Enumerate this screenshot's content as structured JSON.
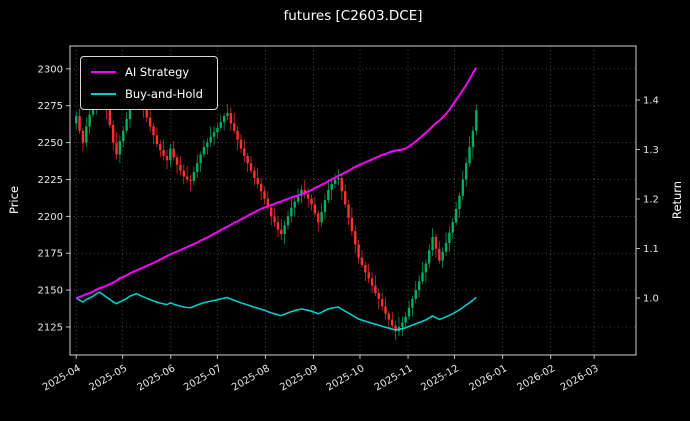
{
  "chart_data": {
    "type": "candlestick",
    "title": "futures [C2603.DCE]",
    "ylabel_left": "Price",
    "ylabel_right": "Return",
    "grid": true,
    "legend_position": "upper left",
    "colors": {
      "up": "#00b060",
      "down": "#fe3032",
      "ai": "#ff00ff",
      "bh": "#00cccc",
      "grid": "#555555",
      "spine": "#cfcfcf",
      "text": "#e8e8e8"
    },
    "y_left": {
      "ticks": [
        2125,
        2150,
        2175,
        2200,
        2225,
        2250,
        2275,
        2300
      ],
      "range": [
        2106,
        2315.5
      ]
    },
    "y_right": {
      "ticks": [
        1.0,
        1.1,
        1.2,
        1.3,
        1.4
      ],
      "tick_labels": [
        "1.0",
        "1.1",
        "1.2",
        "1.3",
        "1.4"
      ],
      "range": [
        0.885,
        1.509
      ]
    },
    "x": {
      "tick_labels": [
        "2025-04",
        "2025-05",
        "2025-06",
        "2025-07",
        "2025-08",
        "2025-09",
        "2025-10",
        "2025-11",
        "2025-12",
        "2026-01",
        "2026-02",
        "2026-03"
      ],
      "tick_days": [
        4,
        34,
        65,
        95,
        126,
        157,
        187,
        218,
        248,
        279,
        310,
        338
      ],
      "axis_days": 365,
      "data_start_day": 4,
      "data_end_day": 262
    },
    "candles_ohlc": [
      [
        2263,
        2271,
        2259,
        2268
      ],
      [
        2268,
        2273,
        2256,
        2258
      ],
      [
        2258,
        2260,
        2244,
        2250
      ],
      [
        2250,
        2267,
        2247,
        2261
      ],
      [
        2261,
        2273,
        2256,
        2269
      ],
      [
        2269,
        2283,
        2267,
        2276
      ],
      [
        2276,
        2290,
        2269,
        2287
      ],
      [
        2287,
        2300,
        2284,
        2295
      ],
      [
        2295,
        2298,
        2280,
        2284
      ],
      [
        2284,
        2286,
        2266,
        2272
      ],
      [
        2272,
        2277,
        2260,
        2262
      ],
      [
        2262,
        2265,
        2245,
        2250
      ],
      [
        2250,
        2257,
        2239,
        2242
      ],
      [
        2242,
        2255,
        2236,
        2251
      ],
      [
        2251,
        2261,
        2247,
        2258
      ],
      [
        2258,
        2271,
        2256,
        2266
      ],
      [
        2266,
        2279,
        2260,
        2277
      ],
      [
        2277,
        2289,
        2274,
        2283
      ],
      [
        2283,
        2292,
        2278,
        2288
      ],
      [
        2288,
        2295,
        2278,
        2280
      ],
      [
        2280,
        2283,
        2267,
        2274
      ],
      [
        2274,
        2278,
        2264,
        2267
      ],
      [
        2267,
        2273,
        2257,
        2261
      ],
      [
        2261,
        2263,
        2249,
        2255
      ],
      [
        2255,
        2260,
        2247,
        2249
      ],
      [
        2249,
        2252,
        2240,
        2245
      ],
      [
        2245,
        2252,
        2238,
        2241
      ],
      [
        2241,
        2245,
        2232,
        2238
      ],
      [
        2238,
        2249,
        2234,
        2246
      ],
      [
        2246,
        2251,
        2238,
        2240
      ],
      [
        2240,
        2242,
        2229,
        2235
      ],
      [
        2235,
        2241,
        2228,
        2231
      ],
      [
        2231,
        2235,
        2222,
        2227
      ],
      [
        2227,
        2234,
        2223,
        2225
      ],
      [
        2225,
        2228,
        2217,
        2224
      ],
      [
        2224,
        2234,
        2221,
        2230
      ],
      [
        2230,
        2242,
        2226,
        2236
      ],
      [
        2236,
        2244,
        2230,
        2242
      ],
      [
        2242,
        2252,
        2240,
        2247
      ],
      [
        2247,
        2253,
        2242,
        2250
      ],
      [
        2250,
        2261,
        2247,
        2254
      ],
      [
        2254,
        2261,
        2248,
        2257
      ],
      [
        2257,
        2263,
        2253,
        2260
      ],
      [
        2260,
        2269,
        2258,
        2264
      ],
      [
        2264,
        2270,
        2258,
        2268
      ],
      [
        2268,
        2276,
        2265,
        2270
      ],
      [
        2270,
        2274,
        2258,
        2263
      ],
      [
        2263,
        2270,
        2256,
        2258
      ],
      [
        2258,
        2261,
        2245,
        2252
      ],
      [
        2252,
        2256,
        2243,
        2246
      ],
      [
        2246,
        2252,
        2237,
        2241
      ],
      [
        2241,
        2243,
        2230,
        2236
      ],
      [
        2236,
        2241,
        2229,
        2231
      ],
      [
        2231,
        2234,
        2221,
        2226
      ],
      [
        2226,
        2233,
        2219,
        2222
      ],
      [
        2222,
        2226,
        2211,
        2217
      ],
      [
        2217,
        2220,
        2208,
        2212
      ],
      [
        2212,
        2217,
        2204,
        2206
      ],
      [
        2206,
        2208,
        2194,
        2200
      ],
      [
        2200,
        2206,
        2193,
        2196
      ],
      [
        2196,
        2200,
        2186,
        2191
      ],
      [
        2191,
        2198,
        2184,
        2188
      ],
      [
        2188,
        2197,
        2181,
        2194
      ],
      [
        2194,
        2204,
        2191,
        2200
      ],
      [
        2200,
        2212,
        2196,
        2206
      ],
      [
        2206,
        2212,
        2200,
        2210
      ],
      [
        2210,
        2219,
        2208,
        2214
      ],
      [
        2214,
        2221,
        2209,
        2218
      ],
      [
        2218,
        2225,
        2212,
        2215
      ],
      [
        2215,
        2219,
        2206,
        2212
      ],
      [
        2212,
        2215,
        2204,
        2208
      ],
      [
        2208,
        2213,
        2200,
        2202
      ],
      [
        2202,
        2204,
        2190,
        2196
      ],
      [
        2196,
        2209,
        2193,
        2203
      ],
      [
        2203,
        2215,
        2198,
        2211
      ],
      [
        2211,
        2225,
        2209,
        2218
      ],
      [
        2218,
        2225,
        2211,
        2222
      ],
      [
        2222,
        2229,
        2219,
        2225
      ],
      [
        2225,
        2232,
        2221,
        2226
      ],
      [
        2226,
        2228,
        2211,
        2217
      ],
      [
        2217,
        2222,
        2206,
        2208
      ],
      [
        2208,
        2211,
        2194,
        2199
      ],
      [
        2199,
        2206,
        2187,
        2190
      ],
      [
        2190,
        2194,
        2175,
        2181
      ],
      [
        2181,
        2184,
        2168,
        2172
      ],
      [
        2172,
        2177,
        2165,
        2167
      ],
      [
        2167,
        2169,
        2156,
        2162
      ],
      [
        2162,
        2168,
        2155,
        2158
      ],
      [
        2158,
        2162,
        2148,
        2153
      ],
      [
        2153,
        2160,
        2146,
        2148
      ],
      [
        2148,
        2151,
        2137,
        2144
      ],
      [
        2144,
        2148,
        2136,
        2139
      ],
      [
        2139,
        2145,
        2130,
        2134
      ],
      [
        2134,
        2136,
        2124,
        2130
      ],
      [
        2130,
        2135,
        2124,
        2126
      ],
      [
        2126,
        2129,
        2116,
        2122
      ],
      [
        2122,
        2132,
        2119,
        2125
      ],
      [
        2125,
        2132,
        2119,
        2128
      ],
      [
        2128,
        2135,
        2124,
        2132
      ],
      [
        2132,
        2143,
        2130,
        2138
      ],
      [
        2138,
        2146,
        2132,
        2144
      ],
      [
        2144,
        2156,
        2141,
        2150
      ],
      [
        2150,
        2160,
        2145,
        2156
      ],
      [
        2156,
        2169,
        2154,
        2162
      ],
      [
        2162,
        2171,
        2155,
        2168
      ],
      [
        2168,
        2181,
        2165,
        2177
      ],
      [
        2177,
        2192,
        2173,
        2186
      ],
      [
        2186,
        2188,
        2172,
        2178
      ],
      [
        2178,
        2183,
        2168,
        2170
      ],
      [
        2170,
        2179,
        2165,
        2176
      ],
      [
        2176,
        2189,
        2173,
        2182
      ],
      [
        2182,
        2193,
        2176,
        2189
      ],
      [
        2189,
        2199,
        2185,
        2196
      ],
      [
        2196,
        2210,
        2194,
        2205
      ],
      [
        2205,
        2216,
        2199,
        2214
      ],
      [
        2214,
        2231,
        2211,
        2225
      ],
      [
        2225,
        2240,
        2220,
        2236
      ],
      [
        2236,
        2254,
        2234,
        2247
      ],
      [
        2247,
        2261,
        2240,
        2258
      ],
      [
        2258,
        2276,
        2255,
        2272
      ]
    ],
    "series": [
      {
        "name": "AI Strategy",
        "axis": "right",
        "color_key": "ai",
        "values": [
          1.0,
          1.002,
          1.005,
          1.008,
          1.01,
          1.013,
          1.017,
          1.02,
          1.022,
          1.025,
          1.028,
          1.031,
          1.035,
          1.04,
          1.043,
          1.046,
          1.05,
          1.053,
          1.056,
          1.059,
          1.062,
          1.065,
          1.068,
          1.071,
          1.074,
          1.078,
          1.081,
          1.085,
          1.088,
          1.091,
          1.094,
          1.097,
          1.1,
          1.103,
          1.106,
          1.109,
          1.112,
          1.116,
          1.119,
          1.122,
          1.126,
          1.13,
          1.133,
          1.137,
          1.141,
          1.144,
          1.148,
          1.152,
          1.155,
          1.159,
          1.162,
          1.166,
          1.17,
          1.173,
          1.177,
          1.18,
          1.183,
          1.185,
          1.188,
          1.19,
          1.193,
          1.195,
          1.198,
          1.2,
          1.203,
          1.205,
          1.207,
          1.21,
          1.212,
          1.215,
          1.218,
          1.222,
          1.225,
          1.229,
          1.232,
          1.236,
          1.24,
          1.243,
          1.247,
          1.25,
          1.254,
          1.257,
          1.261,
          1.265,
          1.268,
          1.271,
          1.274,
          1.277,
          1.28,
          1.283,
          1.286,
          1.289,
          1.291,
          1.294,
          1.296,
          1.298,
          1.299,
          1.3,
          1.302,
          1.306,
          1.311,
          1.316,
          1.322,
          1.328,
          1.334,
          1.34,
          1.347,
          1.353,
          1.358,
          1.365,
          1.372,
          1.38,
          1.39,
          1.4,
          1.41,
          1.42,
          1.43,
          1.442,
          1.454,
          1.465
        ]
      },
      {
        "name": "Buy-and-Hold",
        "axis": "right",
        "color_key": "bh",
        "values": [
          1.0,
          0.9956,
          0.9921,
          0.9969,
          1.0004,
          1.0035,
          1.0084,
          1.0119,
          1.0071,
          1.0018,
          0.9974,
          0.9921,
          0.9885,
          0.9925,
          0.9956,
          0.9991,
          1.004,
          1.0066,
          1.0088,
          1.0053,
          1.0026,
          0.9996,
          0.9969,
          0.9943,
          0.9916,
          0.9899,
          0.9881,
          0.9868,
          0.9903,
          0.9877,
          0.9854,
          0.9837,
          0.9819,
          0.981,
          0.9806,
          0.9832,
          0.9859,
          0.9885,
          0.9907,
          0.9921,
          0.9938,
          0.9951,
          0.9965,
          0.9982,
          1.0,
          1.0009,
          0.9978,
          0.9956,
          0.9929,
          0.9903,
          0.9881,
          0.9859,
          0.9837,
          0.9815,
          0.9797,
          0.9775,
          0.9753,
          0.9727,
          0.97,
          0.9683,
          0.966,
          0.9647,
          0.9674,
          0.97,
          0.9727,
          0.9744,
          0.9762,
          0.978,
          0.9766,
          0.9753,
          0.9735,
          0.9709,
          0.9683,
          0.9713,
          0.9749,
          0.978,
          0.9797,
          0.981,
          0.9815,
          0.9775,
          0.9735,
          0.9696,
          0.9656,
          0.9616,
          0.9577,
          0.9555,
          0.9533,
          0.9515,
          0.9493,
          0.9471,
          0.9453,
          0.9431,
          0.9409,
          0.9392,
          0.9374,
          0.9356,
          0.937,
          0.9383,
          0.94,
          0.9427,
          0.9453,
          0.948,
          0.9506,
          0.9533,
          0.9559,
          0.9599,
          0.9638,
          0.9603,
          0.9568,
          0.9594,
          0.9621,
          0.9652,
          0.9683,
          0.9722,
          0.9762,
          0.981,
          0.9859,
          0.9907,
          0.9956,
          1.0018
        ]
      }
    ]
  }
}
